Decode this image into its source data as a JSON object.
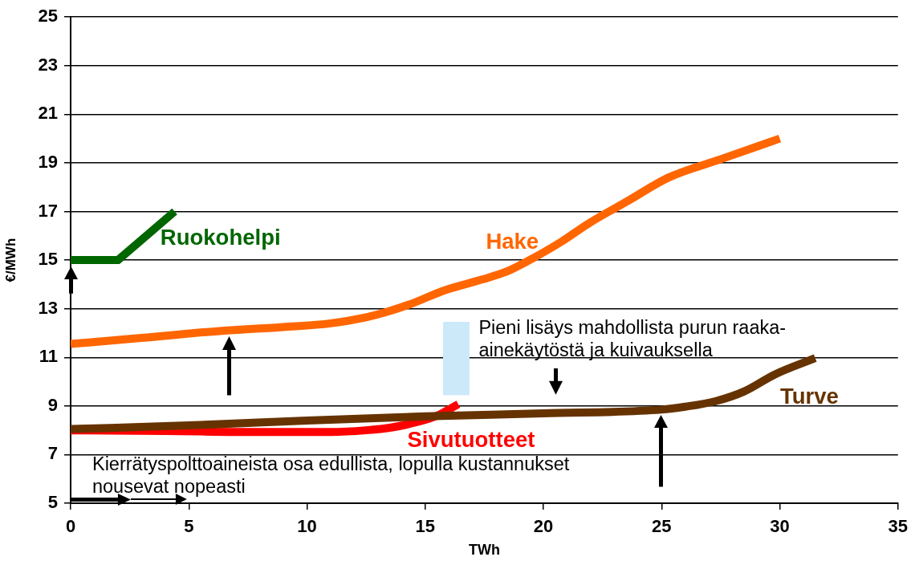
{
  "chart_data": {
    "type": "line",
    "xlabel": "TWh",
    "ylabel": "€/MWh",
    "xlim": [
      0,
      35
    ],
    "xticks": [
      0,
      5,
      10,
      15,
      20,
      25,
      30,
      35
    ],
    "ylim": [
      5,
      25
    ],
    "yticks": [
      5,
      7,
      9,
      11,
      13,
      15,
      17,
      19,
      21,
      23,
      25
    ],
    "grid": "y",
    "line_style": "solid",
    "annotations": [
      "Pieni lisäys mahdollista purun raaka-ainekäytöstä ja kuivauksella",
      "Kierrätyspolttoaineista osa edullista, lopulla kustannukset nousevat nopeasti"
    ],
    "series": [
      {
        "name": "Ruokohelpi",
        "color": "#006600",
        "x": [
          0,
          2,
          4.4
        ],
        "values": [
          15,
          15,
          17
        ]
      },
      {
        "name": "Hake",
        "color": "#ff6600",
        "x": [
          0,
          3,
          6.5,
          9,
          11,
          12.5,
          13.3,
          14.4,
          15.8,
          17.4,
          18.5,
          19.6,
          20.75,
          21.9,
          23.6,
          25.3,
          27.5,
          30
        ],
        "values": [
          11.55,
          11.8,
          12.1,
          12.25,
          12.4,
          12.65,
          12.85,
          13.2,
          13.75,
          14.2,
          14.55,
          15.1,
          15.75,
          16.5,
          17.45,
          18.4,
          19.15,
          20
        ]
      },
      {
        "name": "Sivutuotteet",
        "color": "#ff0000",
        "x": [
          0,
          4,
          8,
          11,
          12.5,
          13.6,
          14.7,
          15.5,
          16.4
        ],
        "values": [
          8.0,
          7.97,
          7.93,
          7.93,
          8.0,
          8.12,
          8.35,
          8.6,
          9.07
        ]
      },
      {
        "name": "Turve",
        "color": "#663300",
        "x": [
          0,
          5,
          10,
          15,
          20,
          25,
          26,
          27.3,
          28.5,
          29.8,
          31.5
        ],
        "values": [
          8.05,
          8.2,
          8.4,
          8.57,
          8.7,
          8.85,
          8.97,
          9.2,
          9.6,
          10.3,
          10.97
        ]
      }
    ]
  }
}
